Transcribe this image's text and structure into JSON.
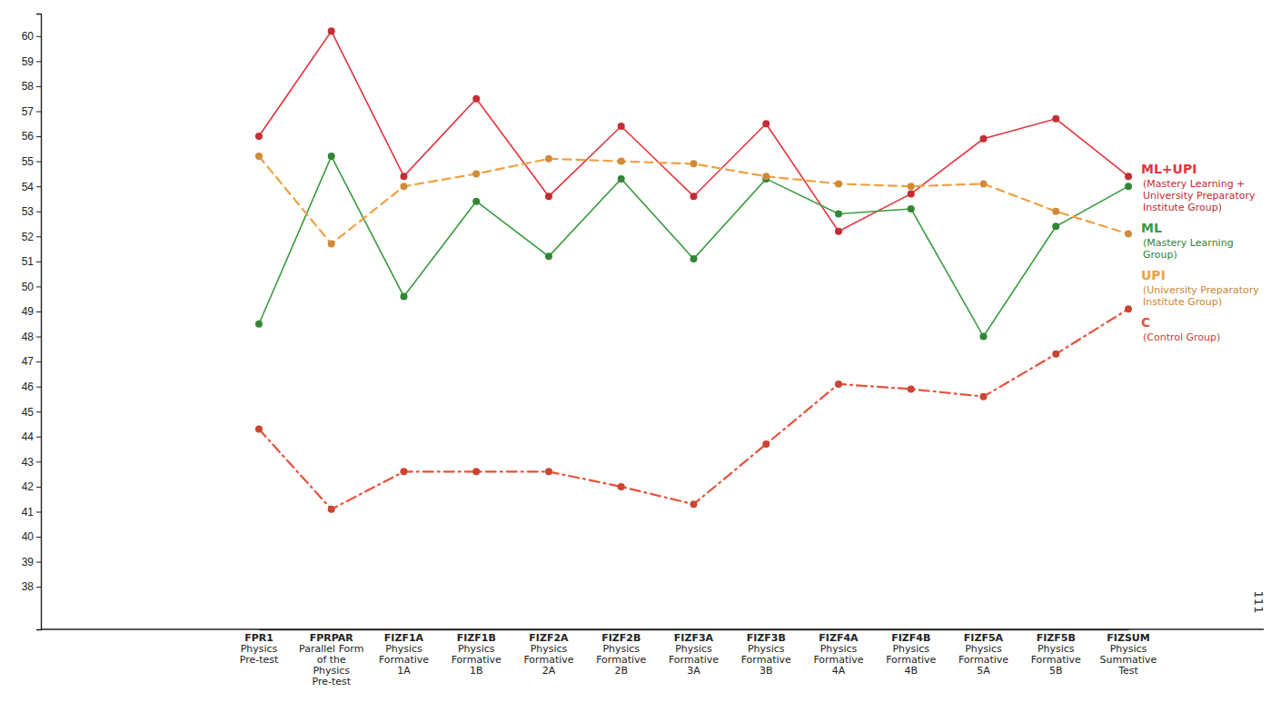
{
  "chart_data": {
    "type": "line",
    "categories": [
      "FPR1 Physics Pre-test",
      "FPRPAR Parallel Form of the Physics Pre-test",
      "FIZF1A Physics Formative 1A",
      "FIZF1B Physics Formative 1B",
      "FIZF2A Physics Formative 2A",
      "FIZF2B Physics Formative 2B",
      "FIZF3A Physics Formative 3A",
      "FIZF3B Physics Formative 3B",
      "FIZF4A Physics Formative 4A",
      "FIZF4B Physics Formative 4B",
      "FIZF5A Physics Formative 5A",
      "FIZF5B Physics Formative 5B",
      "FIZSUM Physics Summative Test"
    ],
    "series": [
      {
        "name": "ML+UPI",
        "description": "(Mastery Learning + University Preparatory Institute Group)",
        "color": "#e3343c",
        "line_style": "solid",
        "marker": "circle",
        "values": [
          56.0,
          60.2,
          54.4,
          57.5,
          53.6,
          56.4,
          53.6,
          56.5,
          52.2,
          53.7,
          55.9,
          56.7,
          54.4
        ]
      },
      {
        "name": "ML",
        "description": "(Mastery Learning Group)",
        "color": "#3a9a3e",
        "line_style": "solid",
        "marker": "circle",
        "values": [
          48.5,
          55.2,
          49.6,
          53.4,
          51.2,
          54.3,
          51.1,
          54.3,
          52.9,
          53.1,
          48.0,
          52.4,
          54.0
        ]
      },
      {
        "name": "UPI",
        "description": "(University Preparatory Institute Group)",
        "color": "#f0a040",
        "line_style": "dashed",
        "marker": "circle",
        "values": [
          55.2,
          51.7,
          54.0,
          54.5,
          55.1,
          55.0,
          54.9,
          54.4,
          54.1,
          54.0,
          54.1,
          53.0,
          52.1
        ]
      },
      {
        "name": "C",
        "description": "(Control Group)",
        "color": "#e8503a",
        "line_style": "dashdot",
        "marker": "circle",
        "values": [
          44.3,
          41.1,
          42.6,
          42.6,
          42.6,
          42.0,
          41.3,
          43.7,
          46.1,
          45.9,
          45.6,
          47.3,
          49.1
        ]
      }
    ],
    "ylim": [
      36.3,
      60.9
    ],
    "yticks": [
      38,
      39,
      40,
      41,
      42,
      43,
      44,
      45,
      46,
      47,
      48,
      49,
      50,
      51,
      52,
      53,
      54,
      55,
      56,
      57,
      58,
      59,
      60
    ],
    "grid": false,
    "legend": "right",
    "annotations": [
      {
        "text": "111"
      }
    ]
  }
}
